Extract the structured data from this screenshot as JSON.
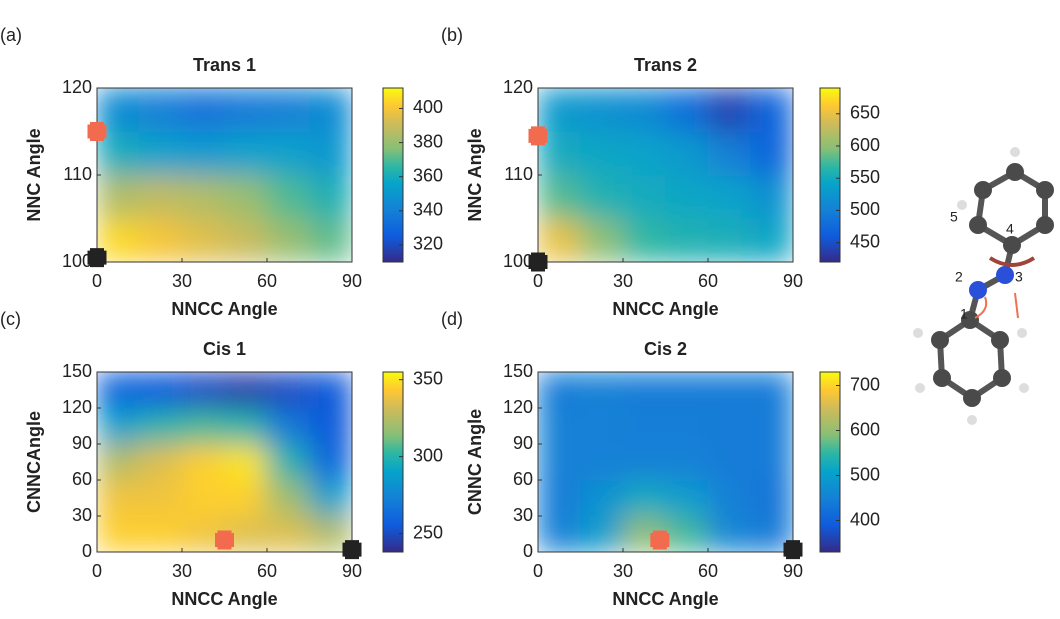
{
  "chart_data": [
    {
      "type": "heatmap",
      "panel_label": "(a)",
      "title": "Trans 1",
      "x_label": "NNCC Angle",
      "y_label": "NNC Angle",
      "x": [
        7.5,
        22.5,
        37.5,
        52.5,
        67.5,
        82.5
      ],
      "y": [
        102.5,
        107.5,
        112.5,
        117.5
      ],
      "values": [
        [
          405,
          400,
          395,
          390,
          380,
          372
        ],
        [
          385,
          388,
          385,
          380,
          370,
          362
        ],
        [
          360,
          355,
          352,
          355,
          355,
          350
        ],
        [
          345,
          340,
          335,
          338,
          340,
          345
        ]
      ],
      "xlim": [
        0,
        90
      ],
      "ylim": [
        100,
        120
      ],
      "xticks": [
        0,
        30,
        60,
        90
      ],
      "yticks": [
        100,
        110,
        120
      ],
      "clim": [
        310,
        412
      ],
      "cticks": [
        320,
        340,
        360,
        380,
        400
      ],
      "markers": [
        {
          "x": 0,
          "y": 115,
          "color": "#f26b4f"
        },
        {
          "x": 0,
          "y": 100.5,
          "color": "#222222"
        }
      ]
    },
    {
      "type": "heatmap",
      "panel_label": "(b)",
      "title": "Trans 2",
      "x_label": "NNCC Angle",
      "y_label": "NNC Angle",
      "x": [
        7.5,
        22.5,
        37.5,
        52.5,
        67.5,
        82.5
      ],
      "y": [
        102.5,
        107.5,
        112.5,
        117.5
      ],
      "values": [
        [
          650,
          600,
          570,
          560,
          555,
          545
        ],
        [
          580,
          560,
          550,
          545,
          540,
          520
        ],
        [
          550,
          545,
          540,
          530,
          500,
          470
        ],
        [
          530,
          520,
          510,
          480,
          440,
          470
        ]
      ],
      "xlim": [
        0,
        90
      ],
      "ylim": [
        100,
        120
      ],
      "xticks": [
        0,
        30,
        60,
        90
      ],
      "yticks": [
        100,
        110,
        120
      ],
      "clim": [
        420,
        690
      ],
      "cticks": [
        450,
        500,
        550,
        600,
        650
      ],
      "markers": [
        {
          "x": 0,
          "y": 114.5,
          "color": "#f26b4f"
        },
        {
          "x": 0,
          "y": 100,
          "color": "#222222"
        }
      ]
    },
    {
      "type": "heatmap",
      "panel_label": "(c)",
      "title": "Cis 1",
      "x_label": "NNCC Angle",
      "y_label": "CNNCAngle",
      "x": [
        7.5,
        22.5,
        37.5,
        52.5,
        67.5,
        82.5
      ],
      "y": [
        15,
        45,
        75,
        105,
        135
      ],
      "values": [
        [
          345,
          345,
          340,
          335,
          335,
          325
        ],
        [
          340,
          340,
          345,
          345,
          320,
          290
        ],
        [
          325,
          335,
          345,
          350,
          300,
          260
        ],
        [
          290,
          300,
          305,
          300,
          270,
          255
        ],
        [
          260,
          255,
          250,
          245,
          250,
          255
        ]
      ],
      "xlim": [
        0,
        90
      ],
      "ylim": [
        0,
        150
      ],
      "xticks": [
        0,
        30,
        60,
        90
      ],
      "yticks": [
        0,
        30,
        60,
        90,
        120,
        150
      ],
      "clim": [
        238,
        355
      ],
      "cticks": [
        250,
        300,
        350
      ],
      "markers": [
        {
          "x": 45,
          "y": 10,
          "color": "#f26b4f"
        },
        {
          "x": 90,
          "y": 2,
          "color": "#222222"
        }
      ]
    },
    {
      "type": "heatmap",
      "panel_label": "(d)",
      "title": "Cis 2",
      "x_label": "NNCC Angle",
      "y_label": "CNNC Angle",
      "x": [
        7.5,
        22.5,
        37.5,
        52.5,
        67.5,
        82.5
      ],
      "y": [
        15,
        45,
        75,
        105,
        135
      ],
      "values": [
        [
          450,
          500,
          600,
          560,
          460,
          440
        ],
        [
          440,
          480,
          520,
          500,
          450,
          430
        ],
        [
          450,
          450,
          450,
          450,
          440,
          440
        ],
        [
          450,
          450,
          445,
          445,
          440,
          440
        ],
        [
          440,
          450,
          440,
          440,
          440,
          440
        ]
      ],
      "xlim": [
        0,
        90
      ],
      "ylim": [
        0,
        150
      ],
      "xticks": [
        0,
        30,
        60,
        90
      ],
      "yticks": [
        0,
        30,
        60,
        90,
        120,
        150
      ],
      "clim": [
        330,
        730
      ],
      "cticks": [
        400,
        500,
        600,
        700
      ],
      "markers": [
        {
          "x": 43,
          "y": 10,
          "color": "#f26b4f"
        },
        {
          "x": 90,
          "y": 2,
          "color": "#222222"
        }
      ]
    }
  ],
  "diagram": {
    "atom_labels": [
      "1",
      "2",
      "3",
      "4",
      "5"
    ]
  }
}
